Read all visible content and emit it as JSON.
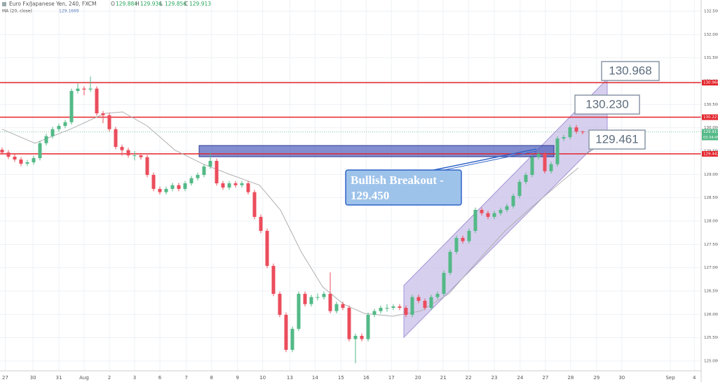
{
  "chart_data": {
    "type": "candlestick",
    "title": "Euro Fx/Japanese Yen, 240, FXCM",
    "header": [
      {
        "key": "O",
        "value": "129.884"
      },
      {
        "key": "H",
        "value": "129.936"
      },
      {
        "key": "L",
        "value": "129.856"
      },
      {
        "key": "C",
        "value": "129.913"
      }
    ],
    "up_color": "#53b987",
    "down_color": "#eb4d5c",
    "open": [
      129.53,
      129.47,
      129.38,
      129.32,
      129.23,
      129.26,
      129.35,
      129.67,
      129.82,
      129.97,
      130.04,
      130.12,
      130.79,
      130.84,
      130.82,
      130.84,
      130.31,
      130.27,
      129.97,
      129.59,
      129.52,
      129.41,
      129.41,
      129.37,
      128.99,
      128.69,
      128.62,
      128.69,
      128.77,
      128.69,
      128.81,
      128.92,
      128.99,
      129.17,
      129.29,
      128.81,
      128.72,
      128.81,
      128.77,
      128.81,
      128.62,
      128.09,
      127.79,
      127.04,
      126.44,
      125.99,
      125.24,
      125.69,
      126.44,
      126.22,
      126.37,
      126.37,
      126.44,
      126.07,
      126.22,
      126.14,
      125.47,
      125.54,
      125.47,
      125.99,
      126.07,
      126.14,
      126.14,
      126.17,
      126.14,
      125.99,
      126.37,
      126.29,
      126.14,
      126.37,
      126.44,
      126.89,
      127.34,
      127.64,
      127.57,
      127.79,
      128.24,
      128.17,
      128.09,
      128.17,
      128.24,
      128.32,
      128.54,
      128.84,
      128.99,
      129.37,
      129.44,
      129.07,
      129.22,
      129.77,
      129.8,
      130.01,
      129.92
    ],
    "high": [
      129.58,
      129.52,
      129.43,
      129.37,
      129.31,
      129.4,
      129.72,
      129.87,
      130.02,
      130.09,
      130.17,
      130.84,
      130.95,
      130.89,
      131.1,
      130.89,
      130.36,
      130.32,
      130.02,
      129.64,
      129.57,
      129.5,
      129.46,
      129.42,
      129.04,
      128.74,
      128.74,
      128.82,
      128.82,
      128.86,
      128.97,
      129.04,
      129.22,
      129.45,
      129.34,
      128.86,
      128.86,
      128.86,
      128.86,
      128.86,
      128.67,
      128.14,
      127.84,
      127.09,
      126.49,
      126.04,
      125.74,
      126.49,
      126.49,
      126.42,
      126.45,
      126.49,
      126.9,
      126.27,
      126.27,
      126.19,
      125.59,
      125.59,
      126.04,
      126.12,
      126.19,
      126.22,
      126.22,
      126.22,
      126.19,
      126.42,
      126.42,
      126.34,
      126.42,
      126.49,
      126.94,
      127.39,
      127.69,
      127.69,
      127.84,
      128.29,
      128.29,
      128.22,
      128.22,
      128.29,
      128.37,
      128.59,
      128.89,
      129.04,
      129.42,
      129.49,
      129.49,
      129.27,
      129.82,
      129.85,
      130.06,
      130.06,
      129.94
    ],
    "low": [
      129.42,
      129.33,
      129.27,
      129.18,
      129.18,
      129.21,
      129.3,
      129.62,
      129.77,
      129.92,
      129.99,
      130.07,
      130.74,
      130.7,
      130.77,
      130.26,
      130.1,
      129.92,
      129.54,
      129.4,
      129.36,
      129.3,
      129.32,
      128.94,
      128.64,
      128.57,
      128.57,
      128.64,
      128.64,
      128.64,
      128.76,
      128.87,
      128.94,
      129.12,
      128.76,
      128.67,
      128.67,
      128.72,
      128.72,
      128.57,
      128.04,
      127.74,
      126.99,
      126.39,
      125.94,
      125.19,
      125.19,
      125.64,
      126.17,
      126.17,
      126.3,
      126.32,
      126.02,
      126.02,
      126.09,
      125.42,
      124.95,
      125.42,
      125.42,
      125.94,
      126.02,
      126.06,
      126.09,
      126.09,
      125.94,
      125.94,
      126.24,
      126.09,
      126.09,
      126.32,
      126.39,
      126.84,
      127.29,
      127.52,
      127.52,
      127.74,
      128.12,
      128.04,
      128.04,
      128.12,
      128.19,
      128.27,
      128.49,
      128.79,
      128.94,
      129.32,
      129.02,
      129.02,
      129.17,
      129.72,
      129.75,
      129.87,
      129.86
    ],
    "close": [
      129.47,
      129.38,
      129.32,
      129.23,
      129.26,
      129.35,
      129.67,
      129.82,
      129.97,
      130.04,
      130.12,
      130.79,
      130.84,
      130.82,
      130.84,
      130.31,
      130.27,
      129.97,
      129.59,
      129.52,
      129.41,
      129.41,
      129.37,
      128.99,
      128.69,
      128.62,
      128.69,
      128.77,
      128.69,
      128.81,
      128.92,
      128.99,
      129.17,
      129.29,
      128.81,
      128.72,
      128.81,
      128.77,
      128.81,
      128.62,
      128.09,
      127.79,
      127.04,
      126.44,
      125.99,
      125.24,
      125.69,
      126.44,
      126.22,
      126.37,
      126.37,
      126.44,
      126.07,
      126.22,
      126.14,
      125.47,
      125.54,
      125.47,
      125.99,
      126.07,
      126.14,
      126.14,
      126.17,
      126.14,
      125.99,
      126.37,
      126.29,
      126.14,
      126.37,
      126.44,
      126.89,
      127.34,
      127.64,
      127.57,
      127.79,
      128.24,
      128.17,
      128.09,
      128.17,
      128.24,
      128.32,
      128.54,
      128.84,
      128.99,
      129.37,
      129.44,
      129.07,
      129.22,
      129.77,
      129.8,
      130.01,
      129.92,
      129.91
    ],
    "ma": {
      "name": "MA (20, close)",
      "last": "129.1669",
      "color": "#b0b0b0",
      "x": [
        0,
        5.2,
        10.8,
        16.3,
        19.1,
        23,
        27.4,
        31.9,
        36.3,
        40.8,
        44.1,
        47.4,
        50.8,
        54.1,
        57.4,
        61.9,
        66.3,
        70.8,
        75.2,
        79.7,
        84.1,
        88.6,
        91.3
      ],
      "values": [
        129.97,
        129.67,
        129.97,
        130.31,
        130.34,
        130.04,
        129.52,
        129.22,
        128.99,
        128.77,
        128.24,
        127.34,
        126.59,
        126.22,
        126.02,
        125.96,
        126.07,
        126.44,
        127.12,
        127.79,
        128.32,
        128.84,
        129.14
      ]
    },
    "levels": [
      {
        "value": 130.968,
        "color": "#e3242b",
        "dashed": false
      },
      {
        "value": 130.227,
        "color": "#e3242b",
        "dashed": false
      },
      {
        "value": 129.442,
        "color": "#e3242b",
        "dashed": false
      },
      {
        "value": 129.913,
        "color": "#53b987",
        "dashed": true
      }
    ],
    "countdown": "03:34:45",
    "annotations": [
      "130.968",
      "130.230",
      "129.461",
      "Bullish Breakout -",
      "129.450"
    ],
    "xlim": [
      -0.33,
      110.78
    ],
    "ylim": [
      124.79,
      132.74
    ],
    "xticks": [
      {
        "value": 0.5,
        "label": "27"
      },
      {
        "value": 4.9,
        "label": "30"
      },
      {
        "value": 9,
        "label": "31"
      },
      {
        "value": 13,
        "label": "Aug"
      },
      {
        "value": 17,
        "label": "2"
      },
      {
        "value": 21,
        "label": "3"
      },
      {
        "value": 25,
        "label": "6"
      },
      {
        "value": 29.2,
        "label": "7"
      },
      {
        "value": 33.2,
        "label": "8"
      },
      {
        "value": 37.3,
        "label": "9"
      },
      {
        "value": 41.3,
        "label": "10"
      },
      {
        "value": 45.6,
        "label": "13"
      },
      {
        "value": 49.6,
        "label": "14"
      },
      {
        "value": 53.7,
        "label": "15"
      },
      {
        "value": 57.7,
        "label": "16"
      },
      {
        "value": 61.7,
        "label": "17"
      },
      {
        "value": 65.9,
        "label": "20"
      },
      {
        "value": 69.9,
        "label": "21"
      },
      {
        "value": 73.9,
        "label": "22"
      },
      {
        "value": 78,
        "label": "23"
      },
      {
        "value": 82.1,
        "label": "24"
      },
      {
        "value": 86.1,
        "label": "27"
      },
      {
        "value": 90.1,
        "label": "28"
      },
      {
        "value": 94.2,
        "label": "29"
      },
      {
        "value": 98.2,
        "label": "30"
      },
      {
        "value": 105.9,
        "label": "Sep"
      },
      {
        "value": 109.7,
        "label": "4"
      }
    ],
    "yticks": [
      {
        "value": 125,
        "label": "125.000"
      },
      {
        "value": 125.5,
        "label": "125.500"
      },
      {
        "value": 126,
        "label": "126.000"
      },
      {
        "value": 126.5,
        "label": "126.500"
      },
      {
        "value": 127,
        "label": "127.000"
      },
      {
        "value": 127.5,
        "label": "127.500"
      },
      {
        "value": 128,
        "label": "128.000"
      },
      {
        "value": 128.5,
        "label": "128.500"
      },
      {
        "value": 129,
        "label": "129.000"
      },
      {
        "value": 129.5,
        "label": "129.500"
      },
      {
        "value": 130,
        "label": "130.000"
      },
      {
        "value": 130.5,
        "label": "130.500"
      },
      {
        "value": 131,
        "label": "131.000"
      },
      {
        "value": 131.5,
        "label": "131.500"
      },
      {
        "value": 132,
        "label": "132.000"
      },
      {
        "value": 132.5,
        "label": "132.500"
      }
    ],
    "grid": true
  }
}
